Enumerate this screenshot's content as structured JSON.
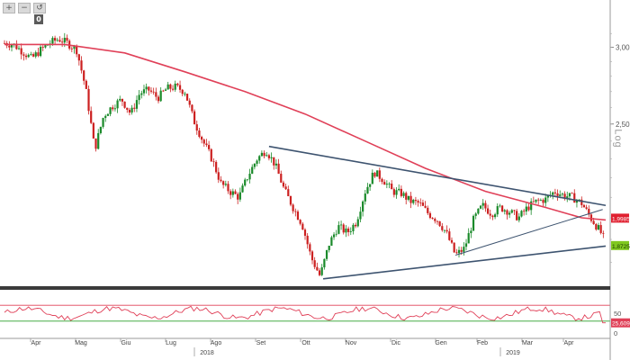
{
  "toolbar": {
    "buttons": [
      {
        "icon": "plus-icon",
        "glyph": "+"
      },
      {
        "icon": "minus-icon",
        "glyph": "−"
      },
      {
        "icon": "reset-icon",
        "glyph": "↺"
      }
    ],
    "badge": "0"
  },
  "chart_data": [
    {
      "type": "line",
      "title": "",
      "scale": "log",
      "scale_label": "Log",
      "x": [
        "Apr",
        "Mag",
        "Giu",
        "Lug",
        "Ago",
        "Set",
        "Ott",
        "Nov",
        "Dic",
        "Gen",
        "Feb",
        "Mar",
        "Apr"
      ],
      "years": [
        "2018",
        "2019"
      ],
      "y_ticks": [
        "3,00",
        "2,50"
      ],
      "ylim": [
        1.7,
        3.3
      ],
      "grid": false,
      "price_path": [
        [
          0,
          3.03
        ],
        [
          6,
          3.02
        ],
        [
          12,
          2.97
        ],
        [
          18,
          2.92
        ],
        [
          24,
          2.98
        ],
        [
          30,
          3.03
        ],
        [
          36,
          3.06
        ],
        [
          42,
          3.03
        ],
        [
          48,
          2.98
        ],
        [
          54,
          2.72
        ],
        [
          60,
          2.35
        ],
        [
          66,
          2.55
        ],
        [
          72,
          2.61
        ],
        [
          78,
          2.65
        ],
        [
          84,
          2.56
        ],
        [
          90,
          2.69
        ],
        [
          96,
          2.71
        ],
        [
          102,
          2.66
        ],
        [
          108,
          2.72
        ],
        [
          114,
          2.73
        ],
        [
          120,
          2.7
        ],
        [
          126,
          2.52
        ],
        [
          132,
          2.4
        ],
        [
          138,
          2.3
        ],
        [
          144,
          2.17
        ],
        [
          150,
          2.13
        ],
        [
          156,
          2.1
        ],
        [
          162,
          2.21
        ],
        [
          168,
          2.3
        ],
        [
          174,
          2.35
        ],
        [
          180,
          2.27
        ],
        [
          186,
          2.14
        ],
        [
          192,
          2.05
        ],
        [
          198,
          1.97
        ],
        [
          204,
          1.82
        ],
        [
          210,
          1.74
        ],
        [
          216,
          1.88
        ],
        [
          222,
          1.96
        ],
        [
          228,
          1.93
        ],
        [
          234,
          1.98
        ],
        [
          240,
          2.13
        ],
        [
          246,
          2.23
        ],
        [
          252,
          2.19
        ],
        [
          258,
          2.13
        ],
        [
          264,
          2.12
        ],
        [
          270,
          2.08
        ],
        [
          276,
          2.07
        ],
        [
          282,
          2.02
        ],
        [
          288,
          1.99
        ],
        [
          294,
          1.93
        ],
        [
          300,
          1.83
        ],
        [
          306,
          1.86
        ],
        [
          312,
          1.99
        ],
        [
          318,
          2.06
        ],
        [
          324,
          2.02
        ],
        [
          330,
          2.05
        ],
        [
          336,
          2.03
        ],
        [
          342,
          2.0
        ],
        [
          348,
          2.05
        ],
        [
          354,
          2.08
        ],
        [
          360,
          2.09
        ],
        [
          366,
          2.13
        ],
        [
          372,
          2.11
        ],
        [
          378,
          2.1
        ],
        [
          384,
          2.07
        ],
        [
          390,
          2.0
        ],
        [
          396,
          1.94
        ],
        [
          400,
          1.89
        ]
      ],
      "ma200_path": [
        [
          0,
          3.02
        ],
        [
          40,
          3.02
        ],
        [
          80,
          2.96
        ],
        [
          120,
          2.83
        ],
        [
          160,
          2.7
        ],
        [
          200,
          2.56
        ],
        [
          240,
          2.4
        ],
        [
          280,
          2.25
        ],
        [
          320,
          2.13
        ],
        [
          360,
          2.05
        ],
        [
          384,
          2.0
        ],
        [
          400,
          1.99
        ]
      ],
      "trend_lines": [
        {
          "from": [
            176,
            2.37
          ],
          "to": [
            400,
            2.06
          ]
        },
        {
          "from": [
            212,
            1.73
          ],
          "to": [
            400,
            1.87
          ]
        },
        {
          "from": [
            300,
            1.83
          ],
          "to": [
            398,
            2.04
          ]
        }
      ],
      "last_labels": [
        {
          "value": 1.9985,
          "text": "1,9985"
        },
        {
          "value": 1.8725,
          "text": "1,8725"
        }
      ],
      "colors": {
        "price_up": "#1a8a2a",
        "price_down": "#cc2020",
        "ma200": "#e04058",
        "trendline": "#3e5470",
        "label_red": "#e02030",
        "label_green": "#80c820"
      }
    },
    {
      "type": "line",
      "title": "",
      "indicator": "RSI",
      "ylim": [
        0,
        100
      ],
      "y_ticks": [
        "50",
        "0"
      ],
      "levels": [
        70,
        30
      ],
      "rsi_last": {
        "value": 25.6099,
        "text": "25,6099"
      },
      "colors": {
        "rsi": "#e04058",
        "upper": "#e04058",
        "lower": "#2aa02a"
      }
    }
  ]
}
